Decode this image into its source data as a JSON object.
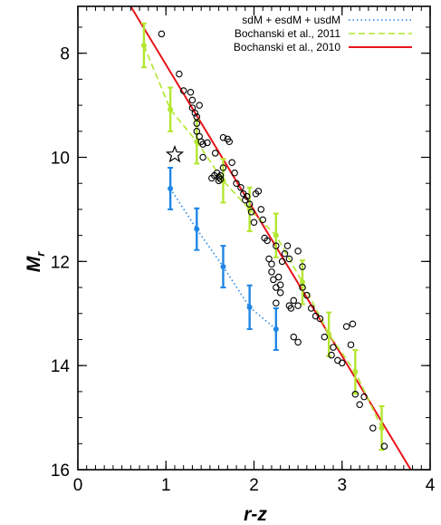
{
  "chart_data": {
    "type": "scatter",
    "xlabel": "r-z",
    "ylabel": "M",
    "ylabel_sub": "r",
    "xlim": [
      0,
      4
    ],
    "ylim": [
      16,
      7.1
    ],
    "y_inverted": true,
    "xticks": [
      "0",
      "1",
      "2",
      "3",
      "4"
    ],
    "yticks": [
      "8",
      "10",
      "12",
      "14",
      "16"
    ],
    "x_minor_step": 0.1,
    "y_minor_step": 0.5,
    "grid": false,
    "legend_placement": "top-right",
    "legend": [
      {
        "label": "sdM + esdM + usdM",
        "series": "subdwarf_sequence"
      },
      {
        "label": "Bochanski et al., 2011",
        "series": "bochanski_2011"
      },
      {
        "label": "Bochanski et al., 2010",
        "series": "bochanski_2010"
      }
    ],
    "scatter_points": {
      "marker": "open-circle",
      "color": "#000000",
      "x": [
        0.95,
        1.15,
        1.2,
        1.28,
        1.3,
        1.33,
        1.35,
        1.38,
        1.35,
        1.4,
        1.35,
        1.47,
        1.42,
        1.52,
        1.55,
        1.6,
        1.62,
        1.65,
        1.65,
        1.7,
        1.72,
        1.75,
        1.78,
        1.3,
        1.38,
        1.42,
        1.56,
        1.58,
        1.6,
        1.62,
        1.8,
        1.85,
        1.88,
        1.9,
        1.92,
        1.95,
        1.97,
        2.0,
        2.02,
        2.05,
        2.08,
        2.1,
        2.12,
        2.15,
        2.17,
        2.2,
        2.22,
        2.25,
        2.25,
        2.28,
        2.3,
        2.32,
        2.35,
        2.38,
        2.2,
        2.25,
        2.3,
        2.4,
        2.42,
        2.45,
        2.5,
        2.55,
        2.6,
        2.65,
        2.7,
        2.75,
        2.4,
        2.5,
        2.55,
        2.8,
        2.88,
        2.9,
        2.95,
        3.0,
        3.1,
        3.15,
        3.2,
        3.25,
        3.35,
        3.48,
        2.45,
        2.5,
        3.05,
        3.12
      ],
      "y": [
        7.63,
        8.4,
        8.72,
        8.75,
        9.05,
        9.15,
        9.22,
        9.0,
        9.5,
        9.7,
        9.35,
        9.72,
        10.0,
        10.4,
        10.35,
        10.45,
        10.35,
        10.2,
        9.62,
        9.65,
        9.7,
        10.1,
        10.3,
        8.9,
        9.6,
        9.75,
        9.92,
        10.3,
        10.38,
        10.42,
        10.5,
        10.58,
        10.7,
        10.82,
        10.75,
        10.9,
        11.05,
        11.25,
        10.7,
        10.65,
        11.0,
        11.2,
        11.55,
        11.6,
        11.95,
        12.05,
        12.35,
        11.7,
        12.5,
        12.3,
        12.45,
        12.0,
        11.85,
        11.7,
        12.2,
        12.8,
        12.6,
        12.85,
        12.9,
        12.75,
        11.8,
        12.1,
        12.65,
        12.9,
        13.05,
        13.1,
        11.95,
        12.85,
        12.5,
        13.45,
        13.8,
        13.65,
        13.9,
        13.95,
        13.6,
        14.55,
        14.75,
        14.6,
        15.2,
        15.55,
        13.45,
        13.55,
        13.25,
        13.2
      ]
    },
    "series": [
      {
        "key": "bochanski_2010",
        "style": "solid",
        "color": "#e8141b",
        "x": [
          0.6,
          3.78
        ],
        "y": [
          7.1,
          16.0
        ]
      },
      {
        "key": "bochanski_2011",
        "style": "dashed",
        "color": "#b3e62e",
        "x": [
          0.75,
          1.05,
          1.35,
          1.65,
          1.95,
          2.25,
          2.55,
          2.85,
          3.15,
          3.45
        ],
        "y": [
          7.85,
          9.08,
          9.7,
          10.45,
          11.0,
          11.5,
          12.4,
          13.4,
          14.12,
          15.2
        ],
        "yerr": [
          0.42,
          0.42,
          0.42,
          0.42,
          0.42,
          0.42,
          0.42,
          0.42,
          0.42,
          0.42
        ]
      },
      {
        "key": "subdwarf_sequence",
        "style": "dotted",
        "color": "#1f86e6",
        "x": [
          1.05,
          1.35,
          1.65,
          1.95,
          2.25
        ],
        "y": [
          10.6,
          11.38,
          12.1,
          12.88,
          13.3
        ],
        "yerr": [
          0.4,
          0.4,
          0.4,
          0.42,
          0.4
        ]
      }
    ],
    "annotations": [
      {
        "marker": "open-star",
        "x": 1.1,
        "y": 9.95
      }
    ]
  }
}
